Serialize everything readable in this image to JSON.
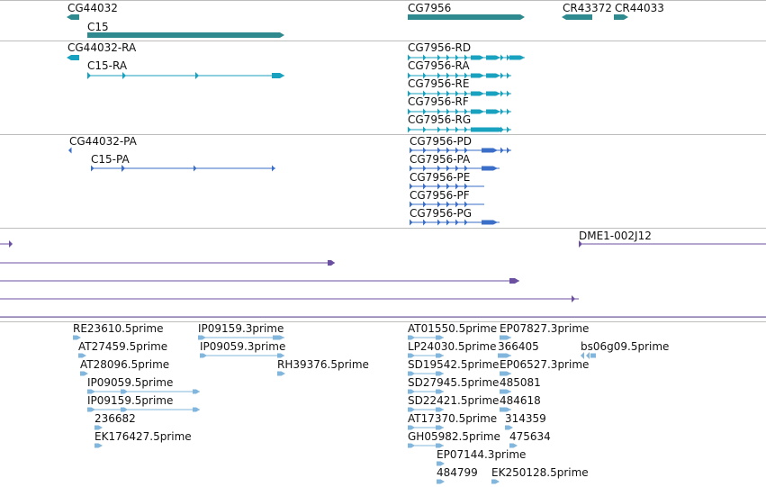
{
  "colors": {
    "gene": "#2f8a8f",
    "transcript": "#19a2bf",
    "protein": "#3a6ec8",
    "clone": "#6b4fa1",
    "est": "#82b6dc",
    "separator": "#bdbdbd"
  },
  "tracks": {
    "genes": [
      {
        "label": "CG44032",
        "icon": "gene-arrow-left"
      },
      {
        "label": "C15",
        "icon": "gene-arrow-right"
      },
      {
        "label": "CG7956",
        "icon": "gene-arrow-right"
      },
      {
        "label": "CR43372",
        "icon": "gene-arrow-left"
      },
      {
        "label": "CR44033",
        "icon": "gene-arrow-right"
      }
    ],
    "transcripts": [
      {
        "label": "CG44032-RA"
      },
      {
        "label": "C15-RA"
      },
      {
        "label": "CG7956-RD"
      },
      {
        "label": "CG7956-RA"
      },
      {
        "label": "CG7956-RE"
      },
      {
        "label": "CG7956-RF"
      },
      {
        "label": "CG7956-RG"
      }
    ],
    "proteins": [
      {
        "label": "CG44032-PA"
      },
      {
        "label": "C15-PA"
      },
      {
        "label": "CG7956-PD"
      },
      {
        "label": "CG7956-PA"
      },
      {
        "label": "CG7956-PE"
      },
      {
        "label": "CG7956-PF"
      },
      {
        "label": "CG7956-PG"
      }
    ],
    "clones": [
      {
        "label": "DME1-002J12"
      }
    ],
    "ests": [
      {
        "label": "RE23610.5prime"
      },
      {
        "label": "IP09159.3prime"
      },
      {
        "label": "AT27459.5prime"
      },
      {
        "label": "IP09059.3prime"
      },
      {
        "label": "AT28096.5prime"
      },
      {
        "label": "RH39376.5prime"
      },
      {
        "label": "IP09059.5prime"
      },
      {
        "label": "IP09159.5prime"
      },
      {
        "label": "236682"
      },
      {
        "label": "EK176427.5prime"
      },
      {
        "label": "AT01550.5prime"
      },
      {
        "label": "EP07827.3prime"
      },
      {
        "label": "LP24030.5prime"
      },
      {
        "label": "366405"
      },
      {
        "label": "bs06g09.5prime"
      },
      {
        "label": "SD19542.5prime"
      },
      {
        "label": "EP06527.3prime"
      },
      {
        "label": "SD27945.5prime"
      },
      {
        "label": "485081"
      },
      {
        "label": "SD22421.5prime"
      },
      {
        "label": "484618"
      },
      {
        "label": "AT17370.5prime"
      },
      {
        "label": "314359"
      },
      {
        "label": "GH05982.5prime"
      },
      {
        "label": "475634"
      },
      {
        "label": "EP07144.3prime"
      },
      {
        "label": "484799"
      },
      {
        "label": "EK250128.5prime"
      }
    ]
  }
}
